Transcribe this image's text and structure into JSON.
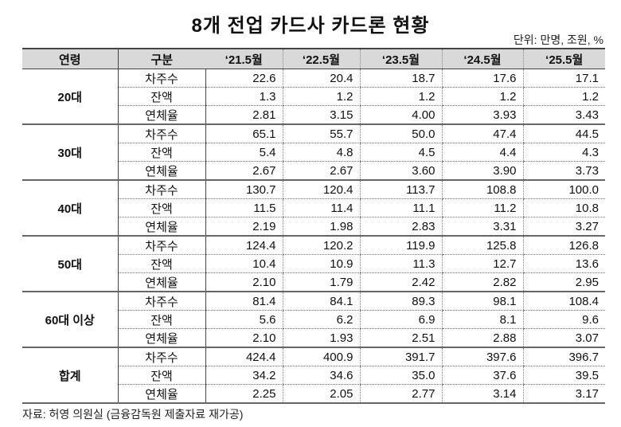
{
  "title": "8개 전업 카드사 카드론 현황",
  "unit": "단위: 만명, 조원, %",
  "headers": [
    "연령",
    "구분",
    "‘21.5월",
    "‘22.5월",
    "‘23.5월",
    "‘24.5월",
    "‘25.5월"
  ],
  "categories": [
    "차주수",
    "잔액",
    "연체율"
  ],
  "groups": [
    {
      "age": "20대",
      "rows": [
        [
          "22.6",
          "20.4",
          "18.7",
          "17.6",
          "17.1"
        ],
        [
          "1.3",
          "1.2",
          "1.2",
          "1.2",
          "1.2"
        ],
        [
          "2.81",
          "3.15",
          "4.00",
          "3.93",
          "3.43"
        ]
      ]
    },
    {
      "age": "30대",
      "rows": [
        [
          "65.1",
          "55.7",
          "50.0",
          "47.4",
          "44.5"
        ],
        [
          "5.4",
          "4.8",
          "4.5",
          "4.4",
          "4.3"
        ],
        [
          "2.67",
          "2.67",
          "3.60",
          "3.90",
          "3.73"
        ]
      ]
    },
    {
      "age": "40대",
      "rows": [
        [
          "130.7",
          "120.4",
          "113.7",
          "108.8",
          "100.0"
        ],
        [
          "11.5",
          "11.4",
          "11.1",
          "11.2",
          "10.8"
        ],
        [
          "2.19",
          "1.98",
          "2.83",
          "3.31",
          "3.27"
        ]
      ]
    },
    {
      "age": "50대",
      "rows": [
        [
          "124.4",
          "120.2",
          "119.9",
          "125.8",
          "126.8"
        ],
        [
          "10.4",
          "10.9",
          "11.3",
          "12.7",
          "13.6"
        ],
        [
          "2.10",
          "1.79",
          "2.42",
          "2.82",
          "2.95"
        ]
      ]
    },
    {
      "age": "60대 이상",
      "rows": [
        [
          "81.4",
          "84.1",
          "89.3",
          "98.1",
          "108.4"
        ],
        [
          "5.6",
          "6.2",
          "6.9",
          "8.1",
          "9.6"
        ],
        [
          "2.10",
          "1.93",
          "2.51",
          "2.88",
          "3.07"
        ]
      ]
    },
    {
      "age": "합계",
      "rows": [
        [
          "424.4",
          "400.9",
          "391.7",
          "397.6",
          "396.7"
        ],
        [
          "34.2",
          "34.6",
          "35.0",
          "37.6",
          "39.5"
        ],
        [
          "2.25",
          "2.05",
          "2.77",
          "3.14",
          "3.17"
        ]
      ]
    }
  ],
  "source": "자료: 허영 의원실 (금융감독원 제출자료 재가공)"
}
